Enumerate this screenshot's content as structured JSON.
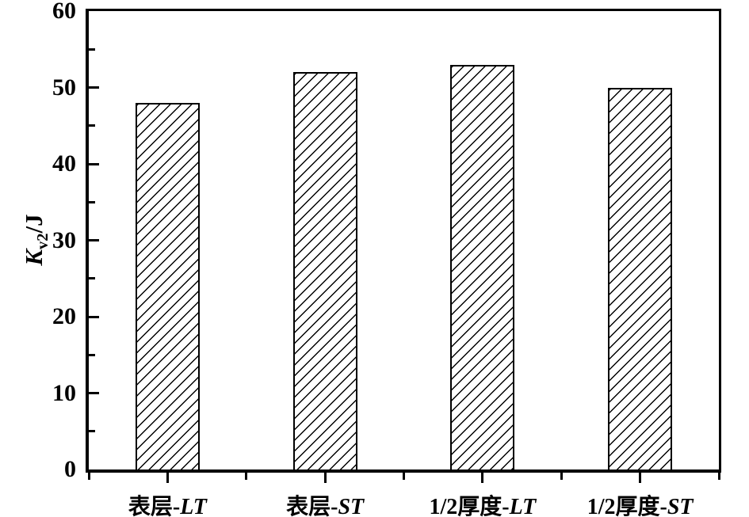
{
  "chart_data": {
    "type": "bar",
    "title": "",
    "categories": [
      "表层-LT",
      "表层-ST",
      "1/2厚度-LT",
      "1/2厚度-ST"
    ],
    "category_parts": [
      {
        "prefix": "表层-",
        "italic": "LT"
      },
      {
        "prefix": "表层-",
        "italic": "ST"
      },
      {
        "prefix": "1/2厚度-",
        "italic": "LT"
      },
      {
        "prefix": "1/2厚度-",
        "italic": "ST"
      }
    ],
    "values": [
      48,
      52,
      53,
      50
    ],
    "xlabel": "",
    "ylabel": "Kv2/J",
    "ylabel_parts": {
      "symbol": "K",
      "subscript": "v2",
      "unit": "/J"
    },
    "ylim": [
      0,
      60
    ],
    "yticks_major": [
      0,
      10,
      20,
      30,
      40,
      50,
      60
    ],
    "yticks_minor": [
      5,
      15,
      25,
      35,
      45,
      55
    ],
    "grid": false,
    "legend": "none",
    "frame": "full-box",
    "bar_fill": "#ffffff",
    "bar_hatch": "forward-diagonal",
    "axis_color": "#000000",
    "background_color": "#ffffff"
  }
}
